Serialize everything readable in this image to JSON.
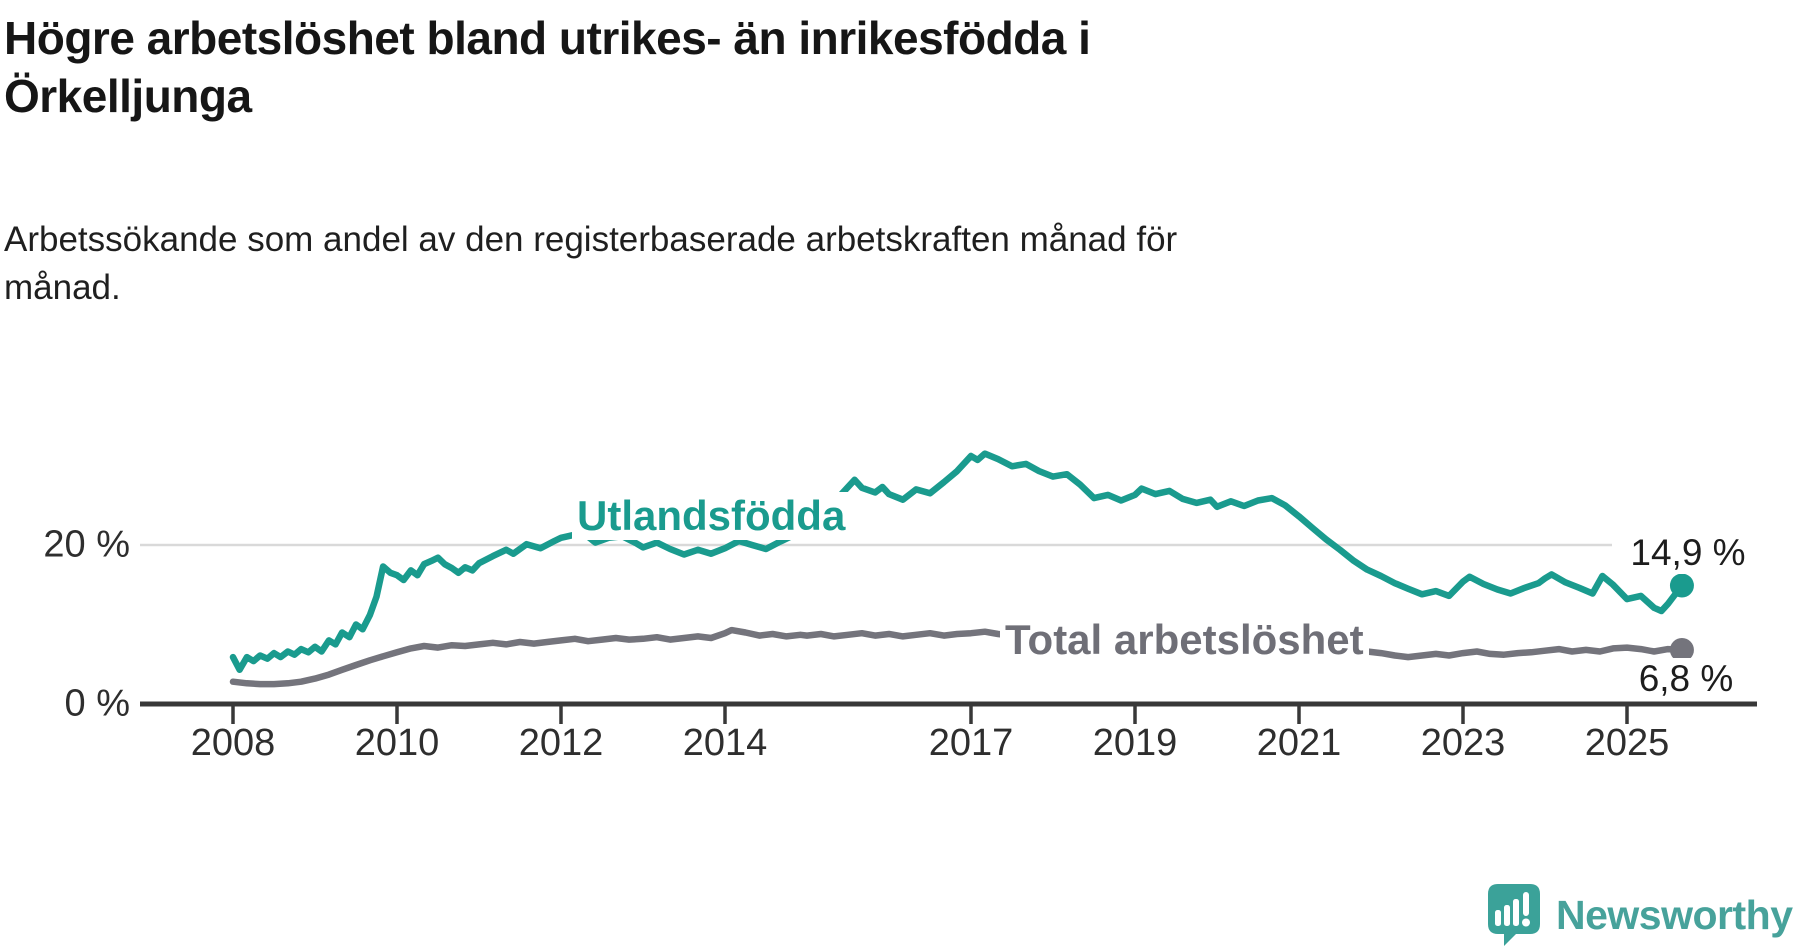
{
  "header": {
    "title": "Högre arbetslöshet bland utrikes- än inrikesfödda i Örkelljunga",
    "subtitle": "Arbetssökande som andel av den registerbaserade arbetskraften månad för månad."
  },
  "footer": {
    "brand": "Newsworthy"
  },
  "chart_data": {
    "type": "line",
    "title": "Högre arbetslöshet bland utrikes- än inrikesfödda i Örkelljunga",
    "subtitle": "Arbetssökande som andel av den registerbaserade arbetskraften månad för månad.",
    "x_axis": {
      "unit": "year",
      "range": [
        2008,
        2025.7
      ],
      "grid": false
    },
    "y_axis": {
      "unit": "%",
      "ylim": [
        0,
        38
      ],
      "grid": "only-20"
    },
    "x_ticks": [
      2008,
      2010,
      2012,
      2014,
      2017,
      2019,
      2021,
      2023,
      2025
    ],
    "y_ticks": [
      {
        "value": 0,
        "label": "0 %"
      },
      {
        "value": 20,
        "label": "20 %"
      }
    ],
    "gridline_color": "#d9d9d9",
    "axis_color": "#383838",
    "series": [
      {
        "name": "Utlandsfödda",
        "color": "#1a9b8e",
        "end_label": "14,9 %",
        "end_value": 14.9,
        "points": [
          [
            2008.0,
            5.9
          ],
          [
            2008.08,
            4.3
          ],
          [
            2008.17,
            5.9
          ],
          [
            2008.25,
            5.4
          ],
          [
            2008.33,
            6.1
          ],
          [
            2008.42,
            5.7
          ],
          [
            2008.5,
            6.4
          ],
          [
            2008.58,
            5.9
          ],
          [
            2008.67,
            6.6
          ],
          [
            2008.75,
            6.2
          ],
          [
            2008.83,
            6.9
          ],
          [
            2008.92,
            6.5
          ],
          [
            2009.0,
            7.2
          ],
          [
            2009.08,
            6.6
          ],
          [
            2009.17,
            8.0
          ],
          [
            2009.25,
            7.5
          ],
          [
            2009.33,
            9.0
          ],
          [
            2009.42,
            8.4
          ],
          [
            2009.5,
            10.0
          ],
          [
            2009.58,
            9.4
          ],
          [
            2009.67,
            11.2
          ],
          [
            2009.75,
            13.5
          ],
          [
            2009.83,
            17.3
          ],
          [
            2009.92,
            16.5
          ],
          [
            2010.0,
            16.2
          ],
          [
            2010.08,
            15.6
          ],
          [
            2010.17,
            16.8
          ],
          [
            2010.25,
            16.2
          ],
          [
            2010.33,
            17.6
          ],
          [
            2010.42,
            18.0
          ],
          [
            2010.5,
            18.4
          ],
          [
            2010.58,
            17.6
          ],
          [
            2010.67,
            17.1
          ],
          [
            2010.75,
            16.5
          ],
          [
            2010.83,
            17.2
          ],
          [
            2010.92,
            16.8
          ],
          [
            2011.0,
            17.7
          ],
          [
            2011.17,
            18.6
          ],
          [
            2011.33,
            19.4
          ],
          [
            2011.42,
            18.9
          ],
          [
            2011.58,
            20.1
          ],
          [
            2011.75,
            19.6
          ],
          [
            2011.92,
            20.5
          ],
          [
            2012.0,
            20.9
          ],
          [
            2012.17,
            21.3
          ],
          [
            2012.25,
            21.7
          ],
          [
            2012.42,
            20.3
          ],
          [
            2012.58,
            20.9
          ],
          [
            2012.75,
            21.1
          ],
          [
            2012.92,
            20.2
          ],
          [
            2013.0,
            19.7
          ],
          [
            2013.17,
            20.3
          ],
          [
            2013.33,
            19.5
          ],
          [
            2013.5,
            18.8
          ],
          [
            2013.67,
            19.4
          ],
          [
            2013.83,
            18.9
          ],
          [
            2014.0,
            19.6
          ],
          [
            2014.17,
            20.5
          ],
          [
            2014.33,
            20.0
          ],
          [
            2014.5,
            19.5
          ],
          [
            2014.67,
            20.4
          ],
          [
            2014.83,
            21.2
          ],
          [
            2015.0,
            22.6
          ],
          [
            2015.17,
            23.8
          ],
          [
            2015.33,
            25.4
          ],
          [
            2015.5,
            27.3
          ],
          [
            2015.58,
            28.2
          ],
          [
            2015.67,
            27.2
          ],
          [
            2015.83,
            26.6
          ],
          [
            2015.92,
            27.3
          ],
          [
            2016.0,
            26.4
          ],
          [
            2016.17,
            25.7
          ],
          [
            2016.33,
            27.0
          ],
          [
            2016.5,
            26.5
          ],
          [
            2016.67,
            27.9
          ],
          [
            2016.83,
            29.3
          ],
          [
            2017.0,
            31.2
          ],
          [
            2017.08,
            30.7
          ],
          [
            2017.17,
            31.5
          ],
          [
            2017.33,
            30.8
          ],
          [
            2017.5,
            29.9
          ],
          [
            2017.67,
            30.2
          ],
          [
            2017.83,
            29.3
          ],
          [
            2018.0,
            28.6
          ],
          [
            2018.17,
            28.9
          ],
          [
            2018.33,
            27.6
          ],
          [
            2018.5,
            25.9
          ],
          [
            2018.67,
            26.3
          ],
          [
            2018.83,
            25.6
          ],
          [
            2019.0,
            26.3
          ],
          [
            2019.08,
            27.1
          ],
          [
            2019.25,
            26.4
          ],
          [
            2019.42,
            26.8
          ],
          [
            2019.58,
            25.8
          ],
          [
            2019.75,
            25.3
          ],
          [
            2019.92,
            25.7
          ],
          [
            2020.0,
            24.8
          ],
          [
            2020.17,
            25.5
          ],
          [
            2020.33,
            24.9
          ],
          [
            2020.5,
            25.6
          ],
          [
            2020.67,
            25.9
          ],
          [
            2020.83,
            25.0
          ],
          [
            2021.0,
            23.6
          ],
          [
            2021.17,
            22.1
          ],
          [
            2021.33,
            20.7
          ],
          [
            2021.5,
            19.4
          ],
          [
            2021.67,
            18.0
          ],
          [
            2021.83,
            16.9
          ],
          [
            2022.0,
            16.1
          ],
          [
            2022.17,
            15.2
          ],
          [
            2022.33,
            14.5
          ],
          [
            2022.5,
            13.8
          ],
          [
            2022.67,
            14.2
          ],
          [
            2022.83,
            13.6
          ],
          [
            2023.0,
            15.4
          ],
          [
            2023.08,
            16.0
          ],
          [
            2023.25,
            15.1
          ],
          [
            2023.42,
            14.4
          ],
          [
            2023.58,
            13.9
          ],
          [
            2023.75,
            14.6
          ],
          [
            2023.92,
            15.2
          ],
          [
            2024.0,
            15.8
          ],
          [
            2024.08,
            16.3
          ],
          [
            2024.25,
            15.3
          ],
          [
            2024.42,
            14.6
          ],
          [
            2024.58,
            13.9
          ],
          [
            2024.7,
            16.1
          ],
          [
            2024.83,
            15.0
          ],
          [
            2025.0,
            13.2
          ],
          [
            2025.17,
            13.6
          ],
          [
            2025.33,
            12.1
          ],
          [
            2025.42,
            11.7
          ],
          [
            2025.5,
            12.6
          ],
          [
            2025.67,
            14.9
          ]
        ]
      },
      {
        "name": "Total arbetslöshet",
        "color": "#74747c",
        "end_label": "6,8 %",
        "end_value": 6.8,
        "points": [
          [
            2008.0,
            2.8
          ],
          [
            2008.17,
            2.6
          ],
          [
            2008.33,
            2.5
          ],
          [
            2008.5,
            2.5
          ],
          [
            2008.67,
            2.6
          ],
          [
            2008.83,
            2.8
          ],
          [
            2009.0,
            3.2
          ],
          [
            2009.17,
            3.7
          ],
          [
            2009.33,
            4.3
          ],
          [
            2009.5,
            4.9
          ],
          [
            2009.67,
            5.5
          ],
          [
            2009.83,
            6.0
          ],
          [
            2010.0,
            6.5
          ],
          [
            2010.17,
            7.0
          ],
          [
            2010.33,
            7.3
          ],
          [
            2010.5,
            7.1
          ],
          [
            2010.67,
            7.4
          ],
          [
            2010.83,
            7.3
          ],
          [
            2011.0,
            7.5
          ],
          [
            2011.17,
            7.7
          ],
          [
            2011.33,
            7.5
          ],
          [
            2011.5,
            7.8
          ],
          [
            2011.67,
            7.6
          ],
          [
            2011.83,
            7.8
          ],
          [
            2012.0,
            8.0
          ],
          [
            2012.17,
            8.2
          ],
          [
            2012.33,
            7.9
          ],
          [
            2012.5,
            8.1
          ],
          [
            2012.67,
            8.3
          ],
          [
            2012.83,
            8.1
          ],
          [
            2013.0,
            8.2
          ],
          [
            2013.17,
            8.4
          ],
          [
            2013.33,
            8.1
          ],
          [
            2013.5,
            8.3
          ],
          [
            2013.67,
            8.5
          ],
          [
            2013.83,
            8.3
          ],
          [
            2014.0,
            8.9
          ],
          [
            2014.08,
            9.3
          ],
          [
            2014.25,
            9.0
          ],
          [
            2014.42,
            8.6
          ],
          [
            2014.58,
            8.8
          ],
          [
            2014.75,
            8.5
          ],
          [
            2014.92,
            8.7
          ],
          [
            2015.0,
            8.6
          ],
          [
            2015.17,
            8.8
          ],
          [
            2015.33,
            8.5
          ],
          [
            2015.5,
            8.7
          ],
          [
            2015.67,
            8.9
          ],
          [
            2015.83,
            8.6
          ],
          [
            2016.0,
            8.8
          ],
          [
            2016.17,
            8.5
          ],
          [
            2016.33,
            8.7
          ],
          [
            2016.5,
            8.9
          ],
          [
            2016.67,
            8.6
          ],
          [
            2016.83,
            8.8
          ],
          [
            2017.0,
            8.9
          ],
          [
            2017.17,
            9.1
          ],
          [
            2017.33,
            8.8
          ],
          [
            2017.5,
            8.6
          ],
          [
            2017.67,
            8.7
          ],
          [
            2017.83,
            8.5
          ],
          [
            2018.0,
            8.4
          ],
          [
            2018.17,
            8.6
          ],
          [
            2018.33,
            8.3
          ],
          [
            2018.5,
            8.1
          ],
          [
            2018.67,
            8.3
          ],
          [
            2018.83,
            8.1
          ],
          [
            2019.0,
            8.0
          ],
          [
            2019.17,
            8.2
          ],
          [
            2019.33,
            7.9
          ],
          [
            2019.5,
            8.1
          ],
          [
            2019.67,
            7.8
          ],
          [
            2019.83,
            7.9
          ],
          [
            2020.0,
            8.1
          ],
          [
            2020.17,
            8.4
          ],
          [
            2020.33,
            8.6
          ],
          [
            2020.5,
            8.3
          ],
          [
            2020.67,
            8.2
          ],
          [
            2020.83,
            8.0
          ],
          [
            2021.0,
            7.8
          ],
          [
            2021.17,
            7.5
          ],
          [
            2021.33,
            7.2
          ],
          [
            2021.5,
            7.0
          ],
          [
            2021.67,
            6.8
          ],
          [
            2021.83,
            6.6
          ],
          [
            2022.0,
            6.4
          ],
          [
            2022.17,
            6.1
          ],
          [
            2022.33,
            5.9
          ],
          [
            2022.5,
            6.1
          ],
          [
            2022.67,
            6.3
          ],
          [
            2022.83,
            6.1
          ],
          [
            2023.0,
            6.4
          ],
          [
            2023.17,
            6.6
          ],
          [
            2023.33,
            6.3
          ],
          [
            2023.5,
            6.2
          ],
          [
            2023.67,
            6.4
          ],
          [
            2023.83,
            6.5
          ],
          [
            2024.0,
            6.7
          ],
          [
            2024.17,
            6.9
          ],
          [
            2024.33,
            6.6
          ],
          [
            2024.5,
            6.8
          ],
          [
            2024.67,
            6.6
          ],
          [
            2024.83,
            7.0
          ],
          [
            2025.0,
            7.1
          ],
          [
            2025.17,
            6.9
          ],
          [
            2025.33,
            6.6
          ],
          [
            2025.5,
            6.9
          ],
          [
            2025.67,
            6.8
          ]
        ]
      }
    ]
  }
}
